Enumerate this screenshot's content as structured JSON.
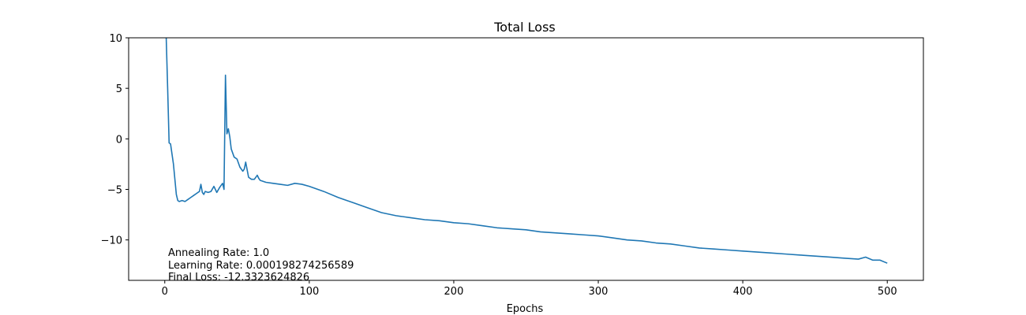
{
  "chart_data": {
    "type": "line",
    "title": "Total Loss",
    "xlabel": "Epochs",
    "ylabel": "",
    "xlim": [
      -25,
      525
    ],
    "ylim": [
      -14,
      10
    ],
    "x_ticks": [
      0,
      100,
      200,
      300,
      400,
      500
    ],
    "y_ticks": [
      10,
      5,
      0,
      -5,
      -10
    ],
    "y_tick_labels": [
      "10",
      "5",
      "0",
      "−5",
      "−10"
    ],
    "grid": false,
    "legend": "none",
    "series_color": "#1f77b4",
    "annotations": [
      "Annealing Rate: 1.0",
      "Learning Rate: 0.000198274256589",
      "Final Loss: -12.3323624826"
    ],
    "series": [
      {
        "x": [
          1,
          2,
          3,
          4,
          5,
          6,
          7,
          8,
          9,
          10,
          12,
          14,
          16,
          18,
          20,
          22,
          24,
          25,
          26,
          27,
          28,
          30,
          32,
          34,
          35,
          36,
          38,
          40,
          41,
          42,
          43,
          44,
          45,
          46,
          48,
          50,
          52,
          54,
          55,
          56,
          58,
          60,
          62,
          64,
          65,
          66,
          70,
          75,
          80,
          85,
          90,
          95,
          100,
          110,
          120,
          130,
          140,
          150,
          160,
          170,
          180,
          190,
          200,
          210,
          220,
          230,
          240,
          250,
          260,
          270,
          280,
          290,
          300,
          310,
          320,
          330,
          340,
          350,
          360,
          370,
          380,
          390,
          400,
          410,
          420,
          430,
          440,
          450,
          460,
          470,
          480,
          485,
          490,
          495,
          500
        ],
        "y": [
          10,
          5,
          -0.4,
          -0.5,
          -1.5,
          -2.5,
          -4,
          -5.5,
          -6.1,
          -6.2,
          -6.1,
          -6.2,
          -6.0,
          -5.8,
          -5.6,
          -5.4,
          -5.2,
          -4.5,
          -5.3,
          -5.5,
          -5.2,
          -5.3,
          -5.2,
          -4.7,
          -5.0,
          -5.3,
          -4.8,
          -4.4,
          -5.0,
          6.3,
          0.5,
          1.0,
          0.2,
          -1.0,
          -1.8,
          -2.0,
          -2.8,
          -3.2,
          -3.0,
          -2.3,
          -3.8,
          -4.0,
          -4.0,
          -3.6,
          -3.9,
          -4.1,
          -4.3,
          -4.4,
          -4.5,
          -4.6,
          -4.4,
          -4.5,
          -4.7,
          -5.2,
          -5.8,
          -6.3,
          -6.8,
          -7.3,
          -7.6,
          -7.8,
          -8.0,
          -8.1,
          -8.3,
          -8.4,
          -8.6,
          -8.8,
          -8.9,
          -9.0,
          -9.2,
          -9.3,
          -9.4,
          -9.5,
          -9.6,
          -9.8,
          -10.0,
          -10.1,
          -10.3,
          -10.4,
          -10.6,
          -10.8,
          -10.9,
          -11.0,
          -11.1,
          -11.2,
          -11.3,
          -11.4,
          -11.5,
          -11.6,
          -11.7,
          -11.8,
          -11.9,
          -11.7,
          -12.0,
          -12.0,
          -12.3
        ]
      }
    ]
  }
}
